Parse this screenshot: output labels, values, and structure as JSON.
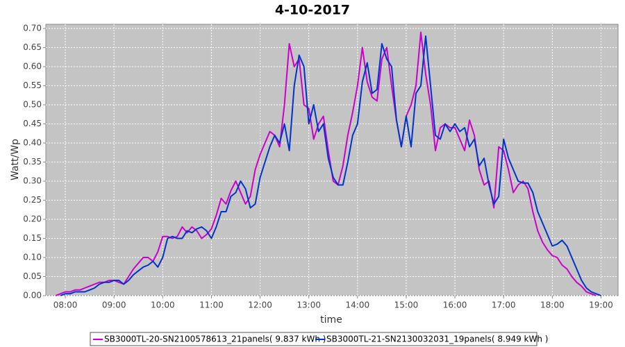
{
  "chart_data": {
    "type": "line",
    "title": "4-10-2017",
    "xlabel": "time",
    "ylabel": "Watt/Wp",
    "xlim": [
      7.6,
      19.35
    ],
    "ylim": [
      0,
      0.711
    ],
    "xticks": [
      {
        "value": 8,
        "label": "08:00"
      },
      {
        "value": 9,
        "label": "09:00"
      },
      {
        "value": 10,
        "label": "10:00"
      },
      {
        "value": 11,
        "label": "11:00"
      },
      {
        "value": 12,
        "label": "12:00"
      },
      {
        "value": 13,
        "label": "13:00"
      },
      {
        "value": 14,
        "label": "14:00"
      },
      {
        "value": 15,
        "label": "15:00"
      },
      {
        "value": 16,
        "label": "16:00"
      },
      {
        "value": 17,
        "label": "17:00"
      },
      {
        "value": 18,
        "label": "18:00"
      },
      {
        "value": 19,
        "label": "19:00"
      }
    ],
    "yticks": [
      {
        "value": 0,
        "label": "0.00"
      },
      0.05,
      {
        "value": 0.1,
        "label": "0.10"
      },
      0.15,
      {
        "value": 0.2,
        "label": "0.20"
      },
      0.25,
      {
        "value": 0.3,
        "label": "0.30"
      },
      0.35,
      {
        "value": 0.4,
        "label": "0.40"
      },
      0.45,
      {
        "value": 0.5,
        "label": "0.50"
      },
      0.55,
      {
        "value": 0.6,
        "label": "0.60"
      },
      0.65,
      {
        "value": 0.7,
        "label": "0.70"
      }
    ],
    "grid": true,
    "x": [
      7.8,
      7.9,
      8,
      8.1,
      8.2,
      8.3,
      8.4,
      8.5,
      8.6,
      8.7,
      8.8,
      8.9,
      9,
      9.1,
      9.2,
      9.3,
      9.4,
      9.5,
      9.6,
      9.7,
      9.8,
      9.9,
      10,
      10.1,
      10.2,
      10.3,
      10.4,
      10.5,
      10.6,
      10.7,
      10.8,
      10.9,
      11,
      11.1,
      11.2,
      11.3,
      11.4,
      11.5,
      11.6,
      11.7,
      11.8,
      11.9,
      12,
      12.1,
      12.2,
      12.3,
      12.4,
      12.5,
      12.6,
      12.7,
      12.8,
      12.9,
      13,
      13.1,
      13.2,
      13.3,
      13.4,
      13.5,
      13.6,
      13.7,
      13.8,
      13.9,
      14,
      14.1,
      14.2,
      14.3,
      14.4,
      14.5,
      14.6,
      14.7,
      14.8,
      14.9,
      15,
      15.1,
      15.2,
      15.3,
      15.4,
      15.5,
      15.6,
      15.7,
      15.8,
      15.9,
      16,
      16.1,
      16.2,
      16.3,
      16.4,
      16.5,
      16.6,
      16.7,
      16.8,
      16.9,
      17,
      17.1,
      17.2,
      17.3,
      17.4,
      17.5,
      17.6,
      17.7,
      17.8,
      17.9,
      18,
      18.1,
      18.2,
      18.3,
      18.4,
      18.5,
      18.6,
      18.7,
      18.8,
      18.9,
      19
    ],
    "series": [
      {
        "name": "SB3000TL-20-SN2100578613_21panels( 9.837 kWh )",
        "color": "#cc00cc",
        "values": [
          0,
          0.005,
          0.01,
          0.01,
          0.015,
          0.015,
          0.02,
          0.025,
          0.03,
          0.035,
          0.035,
          0.04,
          0.04,
          0.035,
          0.03,
          0.05,
          0.07,
          0.085,
          0.1,
          0.1,
          0.09,
          0.115,
          0.155,
          0.155,
          0.15,
          0.155,
          0.18,
          0.165,
          0.18,
          0.17,
          0.15,
          0.16,
          0.175,
          0.21,
          0.255,
          0.24,
          0.275,
          0.3,
          0.27,
          0.24,
          0.26,
          0.33,
          0.37,
          0.4,
          0.43,
          0.42,
          0.39,
          0.5,
          0.66,
          0.6,
          0.62,
          0.5,
          0.49,
          0.41,
          0.45,
          0.47,
          0.38,
          0.3,
          0.29,
          0.34,
          0.42,
          0.48,
          0.55,
          0.65,
          0.56,
          0.52,
          0.51,
          0.62,
          0.65,
          0.55,
          0.46,
          0.39,
          0.47,
          0.5,
          0.55,
          0.69,
          0.58,
          0.5,
          0.38,
          0.44,
          0.45,
          0.44,
          0.44,
          0.41,
          0.38,
          0.46,
          0.42,
          0.33,
          0.29,
          0.3,
          0.23,
          0.39,
          0.38,
          0.33,
          0.27,
          0.29,
          0.3,
          0.28,
          0.22,
          0.17,
          0.14,
          0.12,
          0.105,
          0.1,
          0.08,
          0.07,
          0.05,
          0.035,
          0.025,
          0.01,
          0.005,
          0,
          null
        ]
      },
      {
        "name": "SB3000TL-21-SN2130032031_19panels( 8.949 kWh )",
        "color": "#0033cc",
        "values": [
          null,
          0,
          0.005,
          0.005,
          0.01,
          0.01,
          0.01,
          0.015,
          0.02,
          0.03,
          0.035,
          0.035,
          0.04,
          0.04,
          0.03,
          0.04,
          0.055,
          0.065,
          0.075,
          0.08,
          0.09,
          0.075,
          0.1,
          0.15,
          0.155,
          0.15,
          0.15,
          0.17,
          0.165,
          0.175,
          0.18,
          0.17,
          0.15,
          0.18,
          0.22,
          0.22,
          0.26,
          0.27,
          0.3,
          0.28,
          0.23,
          0.24,
          0.31,
          0.35,
          0.39,
          0.42,
          0.4,
          0.45,
          0.38,
          0.55,
          0.63,
          0.6,
          0.45,
          0.5,
          0.43,
          0.45,
          0.36,
          0.31,
          0.29,
          0.29,
          0.35,
          0.42,
          0.45,
          0.56,
          0.61,
          0.53,
          0.54,
          0.66,
          0.62,
          0.6,
          0.46,
          0.39,
          0.47,
          0.39,
          0.53,
          0.55,
          0.68,
          0.55,
          0.42,
          0.41,
          0.45,
          0.43,
          0.45,
          0.43,
          0.44,
          0.39,
          0.41,
          0.34,
          0.36,
          0.29,
          0.24,
          0.26,
          0.41,
          0.36,
          0.33,
          0.3,
          0.295,
          0.295,
          0.27,
          0.22,
          0.19,
          0.16,
          0.13,
          0.135,
          0.145,
          0.13,
          0.1,
          0.07,
          0.04,
          0.02,
          0.01,
          0.005,
          0
        ]
      }
    ]
  }
}
